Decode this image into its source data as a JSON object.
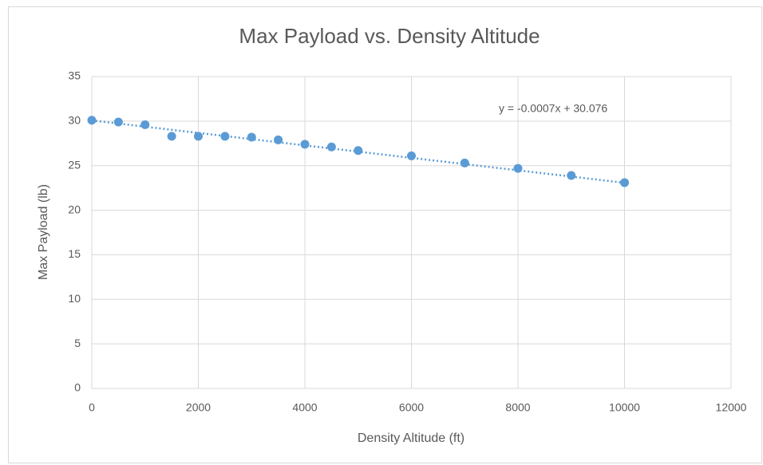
{
  "chart_data": {
    "type": "scatter",
    "title": "Max Payload vs. Density Altitude",
    "x_label": "Density Altitude (ft)",
    "y_label": "Max Payload (lb)",
    "series": [
      {
        "name": "Max Payload",
        "color": "#5b9bd5",
        "x": [
          0,
          500,
          1000,
          1500,
          2000,
          2500,
          3000,
          3500,
          4000,
          4500,
          5000,
          6000,
          7000,
          8000,
          9000,
          10000
        ],
        "values": [
          30.1,
          29.9,
          29.6,
          28.3,
          28.3,
          28.3,
          28.2,
          27.9,
          27.4,
          27.1,
          26.7,
          26.1,
          25.3,
          24.7,
          23.9,
          23.1
        ]
      }
    ],
    "trendline": {
      "slope": -0.0007,
      "intercept": 30.076,
      "label": "y = -0.0007x + 30.076",
      "style": "dotted"
    },
    "xlim": [
      0,
      12000
    ],
    "xticks": [
      0,
      2000,
      4000,
      6000,
      8000,
      10000,
      12000
    ],
    "ylim": [
      0,
      35
    ],
    "yticks": [
      0,
      5,
      10,
      15,
      20,
      25,
      30,
      35
    ],
    "grid": true
  }
}
